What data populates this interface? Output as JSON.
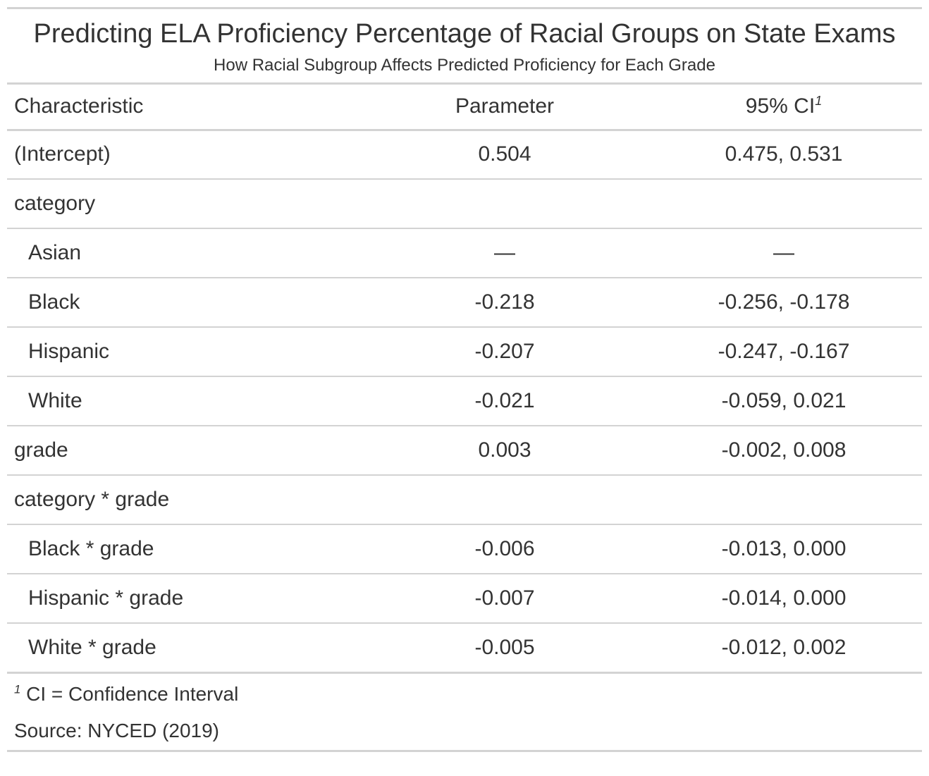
{
  "title": "Predicting ELA Proficiency Percentage of Racial Groups on State Exams",
  "subtitle": "How Racial Subgroup Affects Predicted Proficiency for Each Grade",
  "columns": {
    "characteristic": "Characteristic",
    "parameter": "Parameter",
    "ci": "95% CI",
    "ci_marker": "1"
  },
  "rows": [
    {
      "label": "(Intercept)",
      "parameter": "0.504",
      "ci": "0.475, 0.531",
      "indent": false
    },
    {
      "label": "category",
      "parameter": "",
      "ci": "",
      "indent": false
    },
    {
      "label": "Asian",
      "parameter": "—",
      "ci": "—",
      "indent": true
    },
    {
      "label": "Black",
      "parameter": "-0.218",
      "ci": "-0.256, -0.178",
      "indent": true
    },
    {
      "label": "Hispanic",
      "parameter": "-0.207",
      "ci": "-0.247, -0.167",
      "indent": true
    },
    {
      "label": "White",
      "parameter": "-0.021",
      "ci": "-0.059, 0.021",
      "indent": true
    },
    {
      "label": "grade",
      "parameter": "0.003",
      "ci": "-0.002, 0.008",
      "indent": false
    },
    {
      "label": "category * grade",
      "parameter": "",
      "ci": "",
      "indent": false
    },
    {
      "label": "Black * grade",
      "parameter": "-0.006",
      "ci": "-0.013, 0.000",
      "indent": true
    },
    {
      "label": "Hispanic * grade",
      "parameter": "-0.007",
      "ci": "-0.014, 0.000",
      "indent": true
    },
    {
      "label": "White * grade",
      "parameter": "-0.005",
      "ci": "-0.012, 0.002",
      "indent": true
    }
  ],
  "footnote": {
    "marker": "1",
    "text": "CI = Confidence Interval"
  },
  "source": "Source: NYCED (2019)"
}
